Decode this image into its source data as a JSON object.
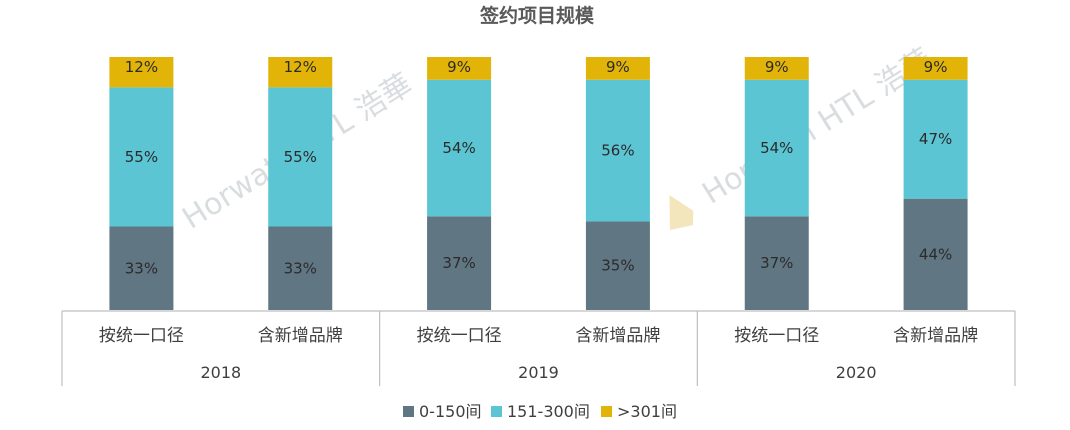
{
  "chart_data": {
    "type": "bar",
    "stacked": true,
    "stack_mode": "percent",
    "title": "签约项目规模",
    "groups": [
      {
        "year": "2018",
        "categories": [
          "按统一口径",
          "含新增品牌"
        ]
      },
      {
        "year": "2019",
        "categories": [
          "按统一口径",
          "含新增品牌"
        ]
      },
      {
        "year": "2020",
        "categories": [
          "按统一口径",
          "含新增品牌"
        ]
      }
    ],
    "categories": [
      "按统一口径",
      "含新增品牌",
      "按统一口径",
      "含新增品牌",
      "按统一口径",
      "含新增品牌"
    ],
    "series": [
      {
        "name": "0-150间",
        "color": "#607683",
        "values": [
          33,
          33,
          37,
          35,
          37,
          44
        ]
      },
      {
        "name": "151-300间",
        "color": "#5bc5d3",
        "values": [
          55,
          55,
          54,
          56,
          54,
          47
        ]
      },
      {
        "name": ">301间",
        "color": "#e3b408",
        "values": [
          12,
          12,
          9,
          9,
          9,
          9
        ]
      }
    ],
    "value_format": "{v}%",
    "ylim": [
      0,
      100
    ],
    "grid": false,
    "legend_position": "bottom"
  },
  "watermark": {
    "text": "Horwath HTL 浩華",
    "logo_color": "#f0dca0"
  }
}
